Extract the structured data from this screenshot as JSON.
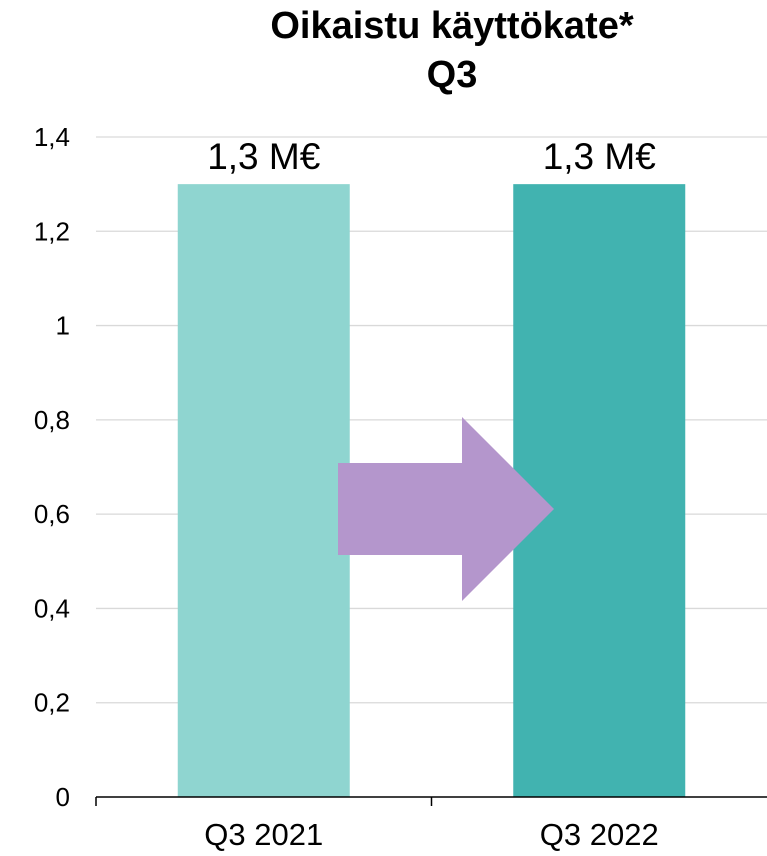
{
  "chart_data": {
    "type": "bar",
    "title": [
      "Oikaistu käyttökate*",
      "Q3"
    ],
    "categories": [
      "Q3 2021",
      "Q3 2022"
    ],
    "values": [
      1.3,
      1.3
    ],
    "data_labels": [
      "1,3 M€",
      "1,3 M€"
    ],
    "bar_colors": [
      "#8fd5d0",
      "#41b3b0"
    ],
    "ylim": [
      0,
      1.4
    ],
    "yticks": [
      "0",
      "0,2",
      "0,4",
      "0,6",
      "0,8",
      "1",
      "1,2",
      "1,4"
    ],
    "grid": true,
    "legend": "none",
    "annotation": {
      "shape": "right-arrow",
      "color": "#b496cc"
    }
  }
}
